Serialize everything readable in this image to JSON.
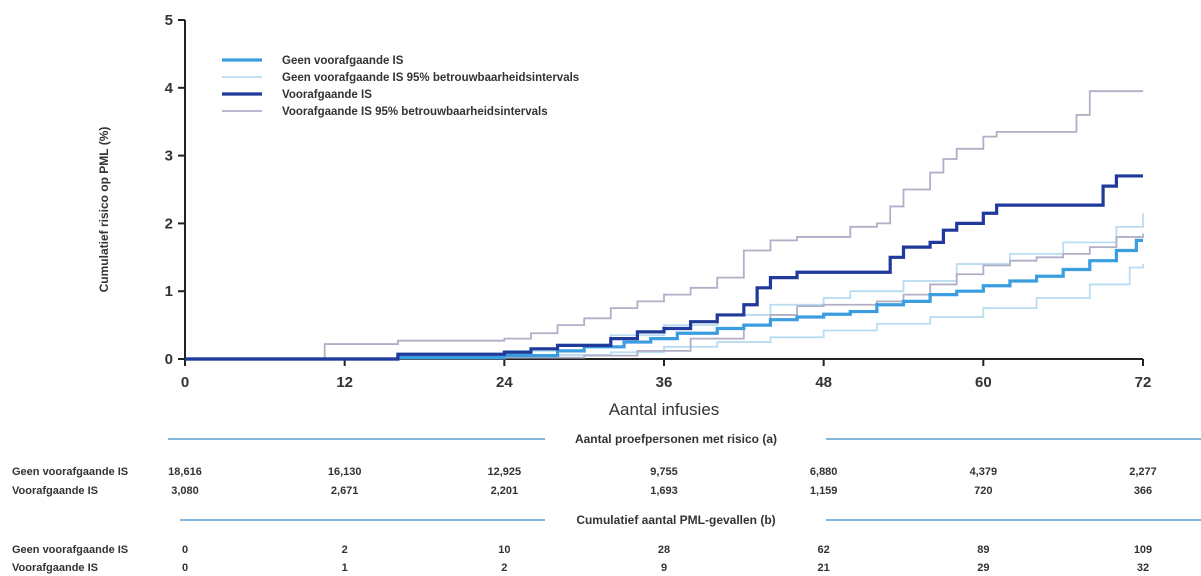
{
  "chart_data": {
    "type": "line",
    "step": true,
    "xlabel": "Aantal infusies",
    "ylabel": "Cumulatief risico op PML (%)",
    "xlim": [
      0,
      72
    ],
    "ylim": [
      0,
      5
    ],
    "xticks": [
      0,
      12,
      24,
      36,
      48,
      60,
      72
    ],
    "yticks": [
      0,
      1,
      2,
      3,
      4,
      5
    ],
    "grid": false,
    "legend_position": "top-left",
    "series": [
      {
        "name": "Geen voorafgaande IS",
        "color": "#3a9de0",
        "width": 3.2,
        "points": [
          [
            0,
            0
          ],
          [
            16,
            0.02
          ],
          [
            24,
            0.05
          ],
          [
            28,
            0.12
          ],
          [
            30,
            0.18
          ],
          [
            33,
            0.25
          ],
          [
            35,
            0.3
          ],
          [
            37,
            0.38
          ],
          [
            40,
            0.45
          ],
          [
            42,
            0.5
          ],
          [
            44,
            0.58
          ],
          [
            46,
            0.62
          ],
          [
            48,
            0.66
          ],
          [
            50,
            0.7
          ],
          [
            52,
            0.8
          ],
          [
            54,
            0.85
          ],
          [
            56,
            0.95
          ],
          [
            58,
            1.0
          ],
          [
            60,
            1.08
          ],
          [
            62,
            1.15
          ],
          [
            64,
            1.22
          ],
          [
            66,
            1.32
          ],
          [
            68,
            1.45
          ],
          [
            70,
            1.6
          ],
          [
            71.5,
            1.75
          ],
          [
            72,
            1.75
          ]
        ]
      },
      {
        "name": "Geen voorafgaande IS 95% betrouwbaarheidsintervals",
        "color": "#b8dcf0",
        "width": 1.8,
        "points": [
          [
            0,
            0
          ],
          [
            16,
            0.01
          ],
          [
            24,
            0.03
          ],
          [
            28,
            0.06
          ],
          [
            32,
            0.1
          ],
          [
            36,
            0.18
          ],
          [
            40,
            0.25
          ],
          [
            44,
            0.32
          ],
          [
            48,
            0.42
          ],
          [
            52,
            0.52
          ],
          [
            56,
            0.62
          ],
          [
            60,
            0.75
          ],
          [
            64,
            0.9
          ],
          [
            68,
            1.1
          ],
          [
            71,
            1.35
          ],
          [
            72,
            1.4
          ]
        ]
      },
      {
        "name": "",
        "color": "#b8dcf0",
        "width": 1.8,
        "points": [
          [
            0,
            0
          ],
          [
            16,
            0.05
          ],
          [
            24,
            0.12
          ],
          [
            28,
            0.22
          ],
          [
            32,
            0.35
          ],
          [
            36,
            0.5
          ],
          [
            40,
            0.65
          ],
          [
            44,
            0.8
          ],
          [
            48,
            0.9
          ],
          [
            50,
            1.0
          ],
          [
            54,
            1.15
          ],
          [
            58,
            1.4
          ],
          [
            62,
            1.55
          ],
          [
            66,
            1.72
          ],
          [
            70,
            1.95
          ],
          [
            72,
            2.15
          ]
        ]
      },
      {
        "name": "Voorafgaande IS",
        "color": "#1f3a9a",
        "width": 3.2,
        "points": [
          [
            0,
            0
          ],
          [
            16,
            0.07
          ],
          [
            24,
            0.1
          ],
          [
            26,
            0.15
          ],
          [
            28,
            0.2
          ],
          [
            32,
            0.3
          ],
          [
            34,
            0.4
          ],
          [
            36,
            0.45
          ],
          [
            38,
            0.55
          ],
          [
            40,
            0.65
          ],
          [
            42,
            0.8
          ],
          [
            43,
            1.05
          ],
          [
            44,
            1.2
          ],
          [
            46,
            1.28
          ],
          [
            52,
            1.28
          ],
          [
            53,
            1.5
          ],
          [
            54,
            1.65
          ],
          [
            56,
            1.72
          ],
          [
            57,
            1.9
          ],
          [
            58,
            2.0
          ],
          [
            60,
            2.15
          ],
          [
            61,
            2.27
          ],
          [
            68,
            2.27
          ],
          [
            69,
            2.55
          ],
          [
            70,
            2.7
          ],
          [
            72,
            2.7
          ]
        ]
      },
      {
        "name": "Voorafgaande IS 95% betrouwbaarheidsintervals",
        "color": "#b3aec8",
        "width": 1.8,
        "points": [
          [
            0,
            0
          ],
          [
            10.5,
            0.22
          ],
          [
            16,
            0.27
          ],
          [
            24,
            0.3
          ],
          [
            26,
            0.38
          ],
          [
            28,
            0.5
          ],
          [
            30,
            0.6
          ],
          [
            32,
            0.75
          ],
          [
            34,
            0.85
          ],
          [
            36,
            0.95
          ],
          [
            38,
            1.05
          ],
          [
            40,
            1.2
          ],
          [
            42,
            1.6
          ],
          [
            44,
            1.75
          ],
          [
            46,
            1.8
          ],
          [
            50,
            1.95
          ],
          [
            52,
            2.0
          ],
          [
            53,
            2.25
          ],
          [
            54,
            2.5
          ],
          [
            56,
            2.75
          ],
          [
            57,
            2.95
          ],
          [
            58,
            3.1
          ],
          [
            60,
            3.28
          ],
          [
            61,
            3.35
          ],
          [
            66,
            3.35
          ],
          [
            67,
            3.6
          ],
          [
            68,
            3.95
          ],
          [
            72,
            3.95
          ]
        ]
      },
      {
        "name": "",
        "color": "#b3aec8",
        "width": 1.8,
        "points": [
          [
            0,
            0
          ],
          [
            16,
            0.01
          ],
          [
            24,
            0.02
          ],
          [
            30,
            0.05
          ],
          [
            34,
            0.12
          ],
          [
            38,
            0.3
          ],
          [
            42,
            0.5
          ],
          [
            44,
            0.65
          ],
          [
            46,
            0.78
          ],
          [
            48,
            0.8
          ],
          [
            52,
            0.85
          ],
          [
            54,
            0.95
          ],
          [
            56,
            1.1
          ],
          [
            58,
            1.25
          ],
          [
            60,
            1.38
          ],
          [
            62,
            1.45
          ],
          [
            64,
            1.5
          ],
          [
            66,
            1.55
          ],
          [
            68,
            1.65
          ],
          [
            70,
            1.8
          ],
          [
            72,
            1.85
          ]
        ]
      }
    ],
    "risk_table": {
      "section1_title": "Aantal proefpersonen met risico (a)",
      "section2_title": "Cumulatief aantal PML-gevallen (b)",
      "rows1": [
        {
          "label": "Geen voorafgaande IS",
          "values": [
            "18,616",
            "16,130",
            "12,925",
            "9,755",
            "6,880",
            "4,379",
            "2,277"
          ]
        },
        {
          "label": "Voorafgaande IS",
          "values": [
            "3,080",
            "2,671",
            "2,201",
            "1,693",
            "1,159",
            "720",
            "366"
          ]
        }
      ],
      "rows2": [
        {
          "label": "Geen voorafgaande IS",
          "values": [
            "0",
            "2",
            "10",
            "28",
            "62",
            "89",
            "109"
          ]
        },
        {
          "label": "Voorafgaande IS",
          "values": [
            "0",
            "1",
            "2",
            "9",
            "21",
            "29",
            "32"
          ]
        }
      ]
    }
  }
}
